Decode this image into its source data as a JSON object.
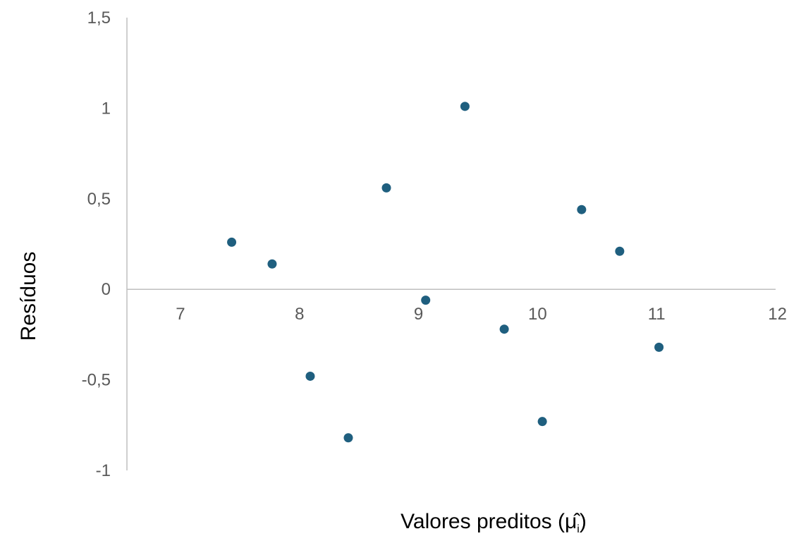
{
  "chart_data": {
    "type": "scatter",
    "xlabel": "Valores preditos (μ̂",
    "xlabel_subscript": "i",
    "xlabel_close": ")",
    "ylabel": "Resíduos",
    "xlim": [
      6.55,
      12
    ],
    "ylim": [
      -1,
      1.5
    ],
    "x_ticks": [
      7,
      8,
      9,
      10,
      11,
      12
    ],
    "x_tick_labels": [
      "7",
      "8",
      "9",
      "10",
      "11",
      "12"
    ],
    "y_ticks": [
      -1,
      -0.5,
      0,
      0.5,
      1,
      1.5
    ],
    "y_tick_labels": [
      "-1",
      "-0,5",
      "0",
      "0,5",
      "1",
      "1,5"
    ],
    "grid": false,
    "marker_color": "#1f5f7f",
    "axis_color": "#bfbfbf",
    "points": [
      {
        "x": 7.43,
        "y": 0.26
      },
      {
        "x": 7.77,
        "y": 0.14
      },
      {
        "x": 8.09,
        "y": -0.48
      },
      {
        "x": 8.41,
        "y": -0.82
      },
      {
        "x": 8.73,
        "y": 0.56
      },
      {
        "x": 9.06,
        "y": -0.06
      },
      {
        "x": 9.39,
        "y": 1.01
      },
      {
        "x": 9.72,
        "y": -0.22
      },
      {
        "x": 10.04,
        "y": -0.73
      },
      {
        "x": 10.37,
        "y": 0.44
      },
      {
        "x": 10.69,
        "y": 0.21
      },
      {
        "x": 11.02,
        "y": -0.32
      }
    ]
  }
}
